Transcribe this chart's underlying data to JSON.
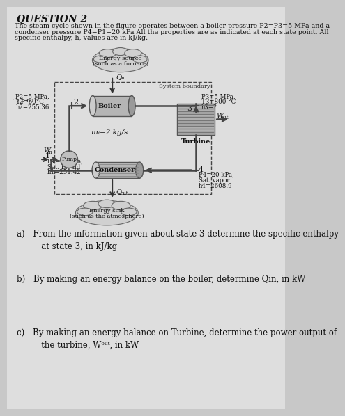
{
  "title": "QUESTION 2",
  "intro_line1": "The steam cycle shown in the figure operates between a boiler pressure P2=P3=5 MPa and a",
  "intro_line2": "condenser pressure P4=P1=20 kPa All the properties are as indicated at each state point. All",
  "intro_line3": "specific enthalpy, h, values are in kJ/kg.",
  "bg_color": "#c8c8c8",
  "paper_color": "#dcdcdc",
  "state2_line1": "P2=5 MPa,",
  "state2_line2": "T2=60°C",
  "state2_h": "h2=255.36",
  "state3_line1": "P3=5 MPa,",
  "state3_line2": "T3=800 °C",
  "state3_h": "h3=?",
  "state1_line1": "P1=20 kPa,",
  "state1_line2": "Sat. Liquid",
  "state1_h": "h1=251.42",
  "state4_line1": "P4=20 kPa,",
  "state4_line2": "Sat. vapor",
  "state4_h": "h4=2608.9",
  "mass_flow": "mᵢ=2 kg/s",
  "energy_source_line1": "Energy source",
  "energy_source_line2": "(such as a furnace)",
  "energy_sink_line1": "Energy sink",
  "energy_sink_line2": "(such as the atmosphere)",
  "system_boundary": "System boundary",
  "boiler_label": "Boiler",
  "condenser_label": "Condenser",
  "turbine_label": "Turbine",
  "pump_label": "Pump",
  "qin_label": "Q",
  "qin_sub": "in",
  "qout_label": "Q",
  "qout_sub": "out",
  "win_label": "W",
  "win_sub": "in",
  "wout_label": "W",
  "wout_sub": "out",
  "q_a": "a) From the information given about state 3 determine the specific enthalpy\n   at state 3, in kJ/kg",
  "q_b": "b) By making an energy balance on the boiler, determine Qin, in kW",
  "q_c": "c) By making an energy balance on Turbine, determine the power output of\n   the turbine, Wᵒᵘᵗ, in kW"
}
